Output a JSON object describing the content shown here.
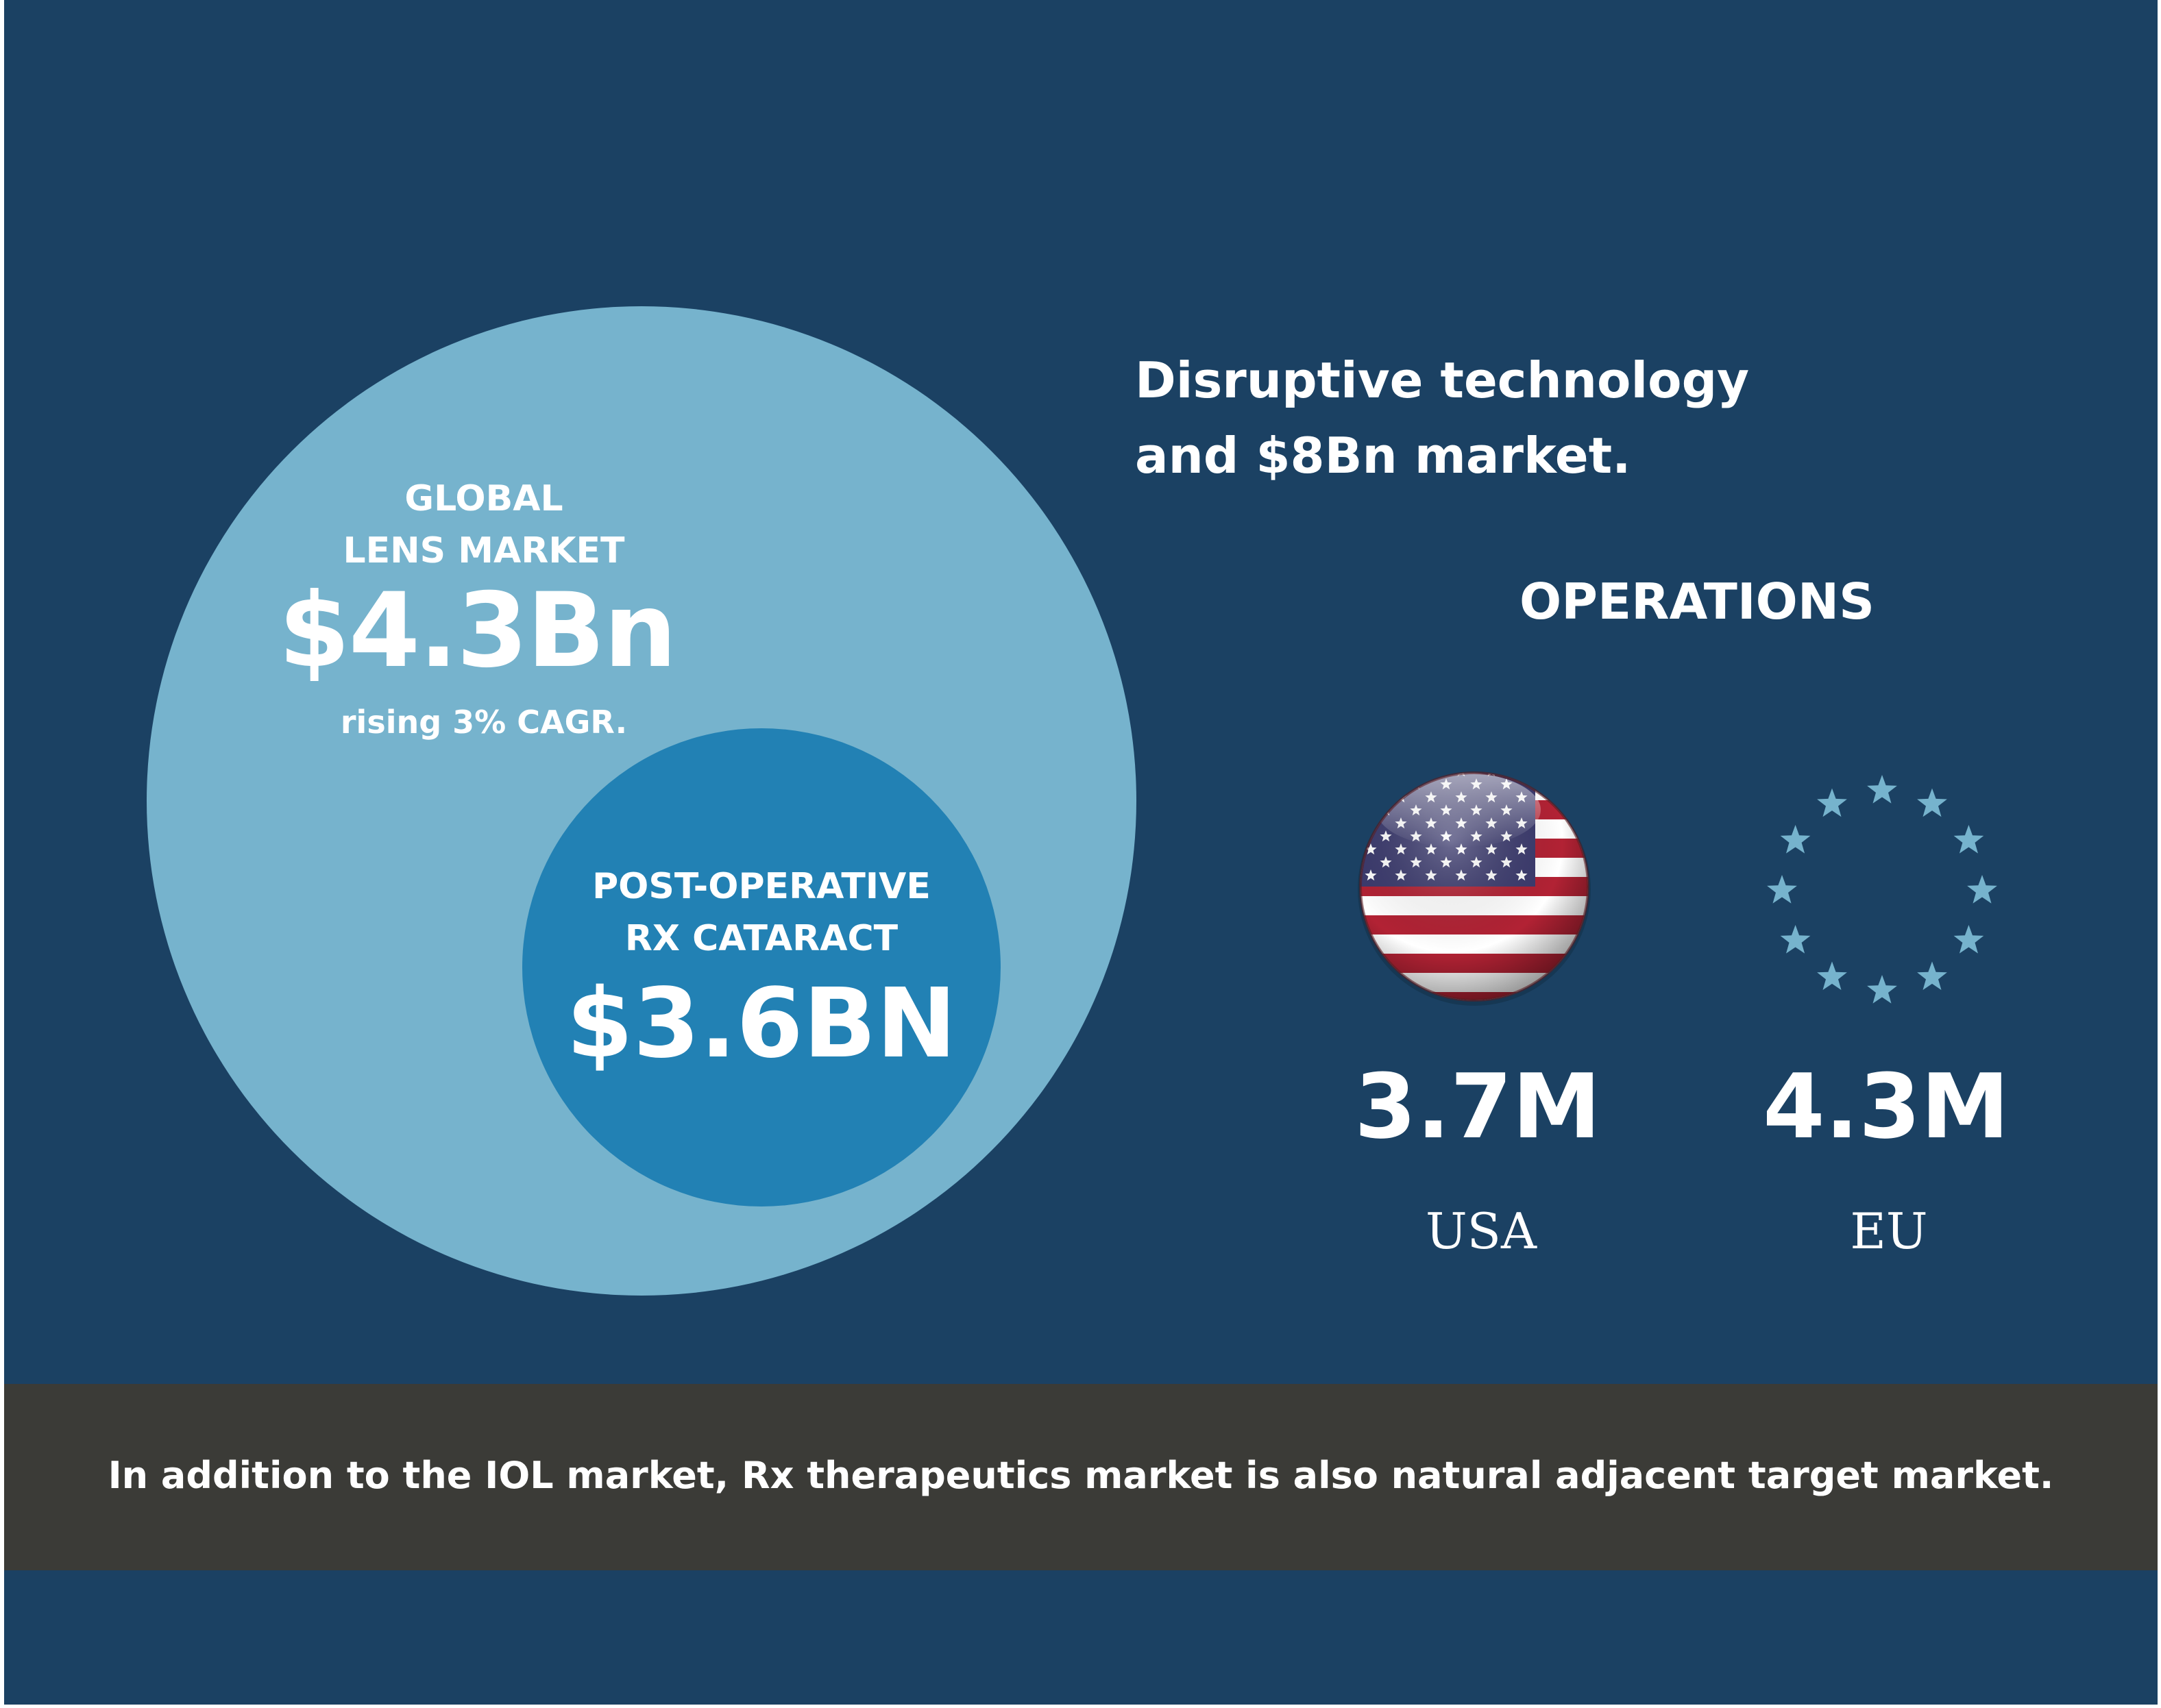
{
  "headline": {
    "line1": "Disruptive technology",
    "line2": "and $8Bn market."
  },
  "global_market": {
    "label_line1": "GLOBAL",
    "label_line2": "LENS MARKET",
    "value": "$4.3Bn",
    "subtitle": "rising 3% CAGR."
  },
  "post_operative": {
    "label_line1": "POST-OPERATIVE",
    "label_line2": "RX CATARACT",
    "value": "$3.6BN"
  },
  "operations": {
    "title": "OPERATIONS",
    "regions": [
      {
        "value": "3.7M",
        "name": "USA",
        "icon": "us-flag-icon"
      },
      {
        "value": "4.3M",
        "name": "EU",
        "icon": "eu-stars-icon"
      }
    ]
  },
  "footer": {
    "text": "In addition to the IOL market, Rx therapeutics market is also natural adjacent target market."
  },
  "colors": {
    "background": "#1b4163",
    "outer_circle": "#76b3cd",
    "inner_circle": "#2281b4",
    "footer_band": "#3b3b37",
    "eu_stars": "#76b3cd"
  }
}
